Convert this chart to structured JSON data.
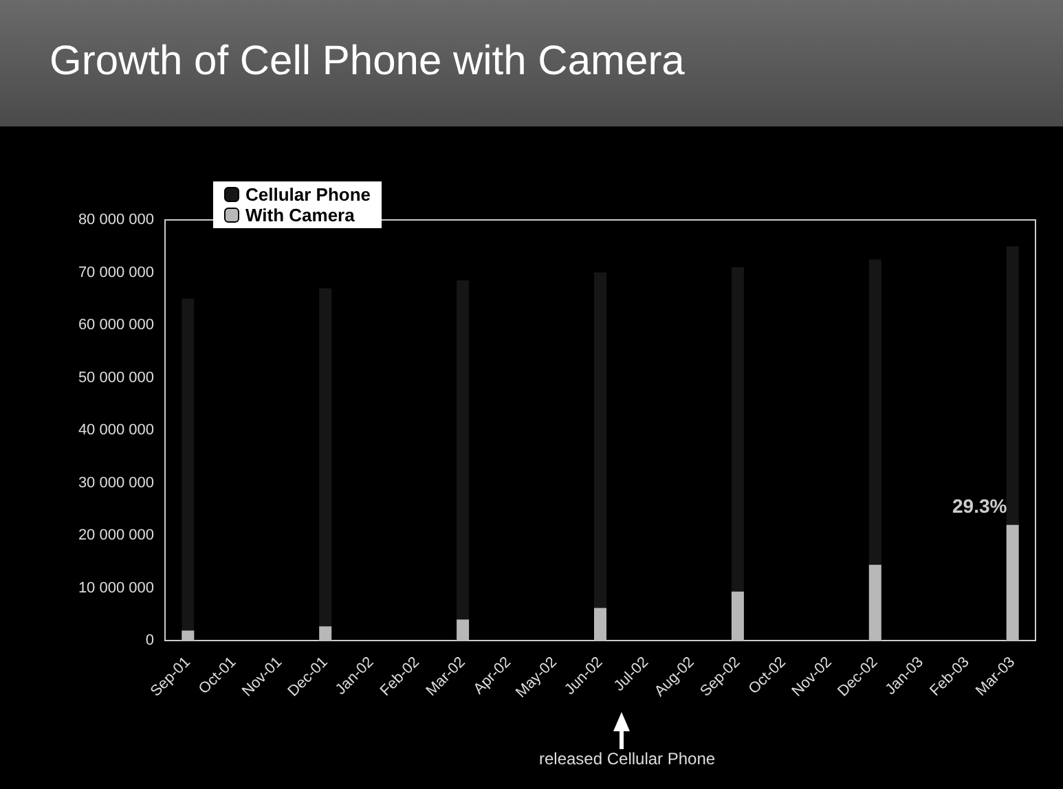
{
  "chart_data": {
    "type": "bar",
    "title": "Growth of Cell Phone with Camera",
    "categories": [
      "Sep-01",
      "Oct-01",
      "Nov-01",
      "Dec-01",
      "Jan-02",
      "Feb-02",
      "Mar-02",
      "Apr-02",
      "May-02",
      "Jun-02",
      "Jul-02",
      "Aug-02",
      "Sep-02",
      "Oct-02",
      "Nov-02",
      "Dec-02",
      "Jan-03",
      "Feb-03",
      "Mar-03"
    ],
    "series": [
      {
        "name": "Cellular Phone",
        "color": "#161616",
        "values": [
          65000000,
          null,
          null,
          67000000,
          null,
          null,
          68500000,
          null,
          null,
          70000000,
          null,
          null,
          71000000,
          null,
          null,
          72500000,
          null,
          null,
          75000000
        ]
      },
      {
        "name": "With Camera",
        "color": "#b8b8b8",
        "values": [
          1900000,
          null,
          null,
          2700000,
          null,
          null,
          4000000,
          null,
          null,
          6200000,
          null,
          null,
          9300000,
          null,
          null,
          14400000,
          null,
          null,
          22000000
        ]
      }
    ],
    "ylim": [
      0,
      80000000
    ],
    "yticks": [
      {
        "value": 0,
        "label": "0"
      },
      {
        "value": 10000000,
        "label": "10 000 000"
      },
      {
        "value": 20000000,
        "label": "20 000 000"
      },
      {
        "value": 30000000,
        "label": "30 000 000"
      },
      {
        "value": 40000000,
        "label": "40 000 000"
      },
      {
        "value": 50000000,
        "label": "50 000 000"
      },
      {
        "value": 60000000,
        "label": "60 000 000"
      },
      {
        "value": 70000000,
        "label": "70 000 000"
      },
      {
        "value": 80000000,
        "label": "80 000 000"
      }
    ],
    "annotations": [
      {
        "text": "29.3%",
        "x": "Mar-03",
        "y": 22000000
      },
      "released Cellular Phone"
    ],
    "legend": "top left",
    "grid": false
  }
}
